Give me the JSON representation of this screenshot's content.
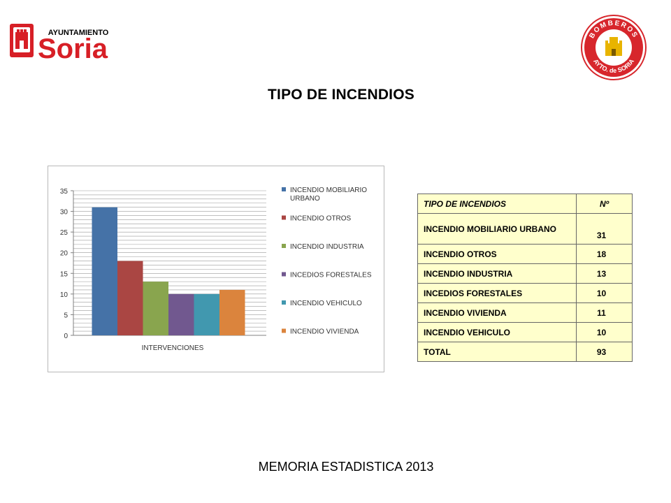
{
  "logos": {
    "left": {
      "line1": "AYUNTAMIENTO",
      "line2": "Soria"
    },
    "right": {
      "top_text": "BOMBEROS",
      "bottom_text": "AYTO. de SORIA"
    }
  },
  "title": "TIPO DE INCENDIOS",
  "chart_data": {
    "type": "bar",
    "categories": [
      "INTERVENCIONES"
    ],
    "xlabel": "INTERVENCIONES",
    "ylabel": "",
    "ylim": [
      0,
      35
    ],
    "yticks": [
      0,
      5,
      10,
      15,
      20,
      25,
      30,
      35
    ],
    "grid": true,
    "legend": "right",
    "series": [
      {
        "name": "INCENDIO MOBILIARIO URBANO",
        "legend_lines": [
          "INCENDIO MOBILIARIO",
          "URBANO"
        ],
        "values": [
          31
        ],
        "color": "#4572a7"
      },
      {
        "name": "INCENDIO OTROS",
        "legend_lines": [
          "INCENDIO OTROS"
        ],
        "values": [
          18
        ],
        "color": "#aa4643"
      },
      {
        "name": "INCENDIO INDUSTRIA",
        "legend_lines": [
          "INCENDIO INDUSTRIA"
        ],
        "values": [
          13
        ],
        "color": "#89a54e"
      },
      {
        "name": "INCEDIOS FORESTALES",
        "legend_lines": [
          "INCEDIOS FORESTALES"
        ],
        "values": [
          10
        ],
        "color": "#71588f"
      },
      {
        "name": "INCENDIO VEHICULO",
        "legend_lines": [
          "INCENDIO VEHICULO"
        ],
        "values": [
          10
        ],
        "color": "#4198af"
      },
      {
        "name": "INCENDIO VIVIENDA",
        "legend_lines": [
          "INCENDIO VIVIENDA"
        ],
        "values": [
          11
        ],
        "color": "#db843d"
      }
    ]
  },
  "table": {
    "headers": [
      "TIPO DE INCENDIOS",
      "Nº"
    ],
    "rows": [
      {
        "label": "INCENDIO MOBILIARIO URBANO",
        "value": "31"
      },
      {
        "label": "INCENDIO OTROS",
        "value": "18"
      },
      {
        "label": "INCENDIO INDUSTRIA",
        "value": "13"
      },
      {
        "label": "INCEDIOS FORESTALES",
        "value": "10"
      },
      {
        "label": "INCENDIO VIVIENDA",
        "value": "11"
      },
      {
        "label": "INCENDIO VEHICULO",
        "value": "10"
      },
      {
        "label": "TOTAL",
        "value": "93"
      }
    ]
  },
  "footer": "MEMORIA ESTADISTICA 2013"
}
